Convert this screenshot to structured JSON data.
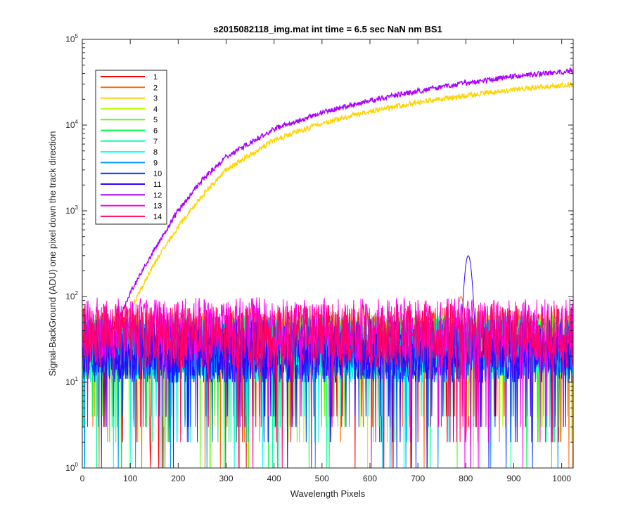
{
  "chart_data": {
    "type": "line",
    "title": "s2015082118_img.mat int time = 6.5 sec  NaN nm BS1",
    "xlabel": "Wavelength Pixels",
    "ylabel": "Signal-BackGround (ADU) one pixel down the track direction",
    "xlim": [
      0,
      1024
    ],
    "ylim": [
      1,
      100000
    ],
    "yscale": "log",
    "xticks": [
      0,
      100,
      200,
      300,
      400,
      500,
      600,
      700,
      800,
      900,
      1000
    ],
    "yticks": [
      1,
      10,
      100,
      1000,
      10000,
      100000
    ],
    "ytick_labels": [
      {
        "base": "10",
        "exp": "0"
      },
      {
        "base": "10",
        "exp": "1"
      },
      {
        "base": "10",
        "exp": "2"
      },
      {
        "base": "10",
        "exp": "3"
      },
      {
        "base": "10",
        "exp": "4"
      },
      {
        "base": "10",
        "exp": "5"
      }
    ],
    "grid": false,
    "legend_position": "top-left",
    "series": [
      {
        "name": "1",
        "color": "#ff0000",
        "profile": "noise",
        "level": 30
      },
      {
        "name": "2",
        "color": "#ff6a00",
        "profile": "noise_peak",
        "level": 35,
        "peak_x": 790,
        "peak_y": 100
      },
      {
        "name": "3",
        "color": "#ffd400",
        "profile": "rising",
        "points": [
          [
            80,
            45
          ],
          [
            100,
            70
          ],
          [
            150,
            240
          ],
          [
            200,
            650
          ],
          [
            250,
            1500
          ],
          [
            300,
            3000
          ],
          [
            400,
            6700
          ],
          [
            500,
            10500
          ],
          [
            600,
            14500
          ],
          [
            700,
            18500
          ],
          [
            800,
            22000
          ],
          [
            900,
            26000
          ],
          [
            1024,
            30000
          ]
        ]
      },
      {
        "name": "4",
        "color": "#bfff00",
        "profile": "noise",
        "level": 30
      },
      {
        "name": "5",
        "color": "#55ff00",
        "profile": "noise",
        "level": 28
      },
      {
        "name": "6",
        "color": "#00ff44",
        "profile": "noise",
        "level": 28
      },
      {
        "name": "7",
        "color": "#00ffaa",
        "profile": "noise",
        "level": 28
      },
      {
        "name": "8",
        "color": "#00ffff",
        "profile": "noise",
        "level": 25
      },
      {
        "name": "9",
        "color": "#0099ff",
        "profile": "noise",
        "level": 28
      },
      {
        "name": "10",
        "color": "#0033ff",
        "profile": "noise",
        "level": 25
      },
      {
        "name": "11",
        "color": "#3300ff",
        "profile": "noise_peak",
        "level": 25,
        "peak_x": 805,
        "peak_y": 300
      },
      {
        "name": "12",
        "color": "#aa00ff",
        "profile": "rising",
        "points": [
          [
            60,
            40
          ],
          [
            80,
            60
          ],
          [
            100,
            110
          ],
          [
            150,
            350
          ],
          [
            200,
            1000
          ],
          [
            250,
            2300
          ],
          [
            300,
            4300
          ],
          [
            400,
            9000
          ],
          [
            500,
            14000
          ],
          [
            600,
            19500
          ],
          [
            700,
            25000
          ],
          [
            800,
            31000
          ],
          [
            900,
            37000
          ],
          [
            1024,
            43000
          ]
        ]
      },
      {
        "name": "13",
        "color": "#ff00ee",
        "profile": "noise",
        "level": 45
      },
      {
        "name": "14",
        "color": "#ff0066",
        "profile": "noise",
        "level": 38
      }
    ]
  }
}
